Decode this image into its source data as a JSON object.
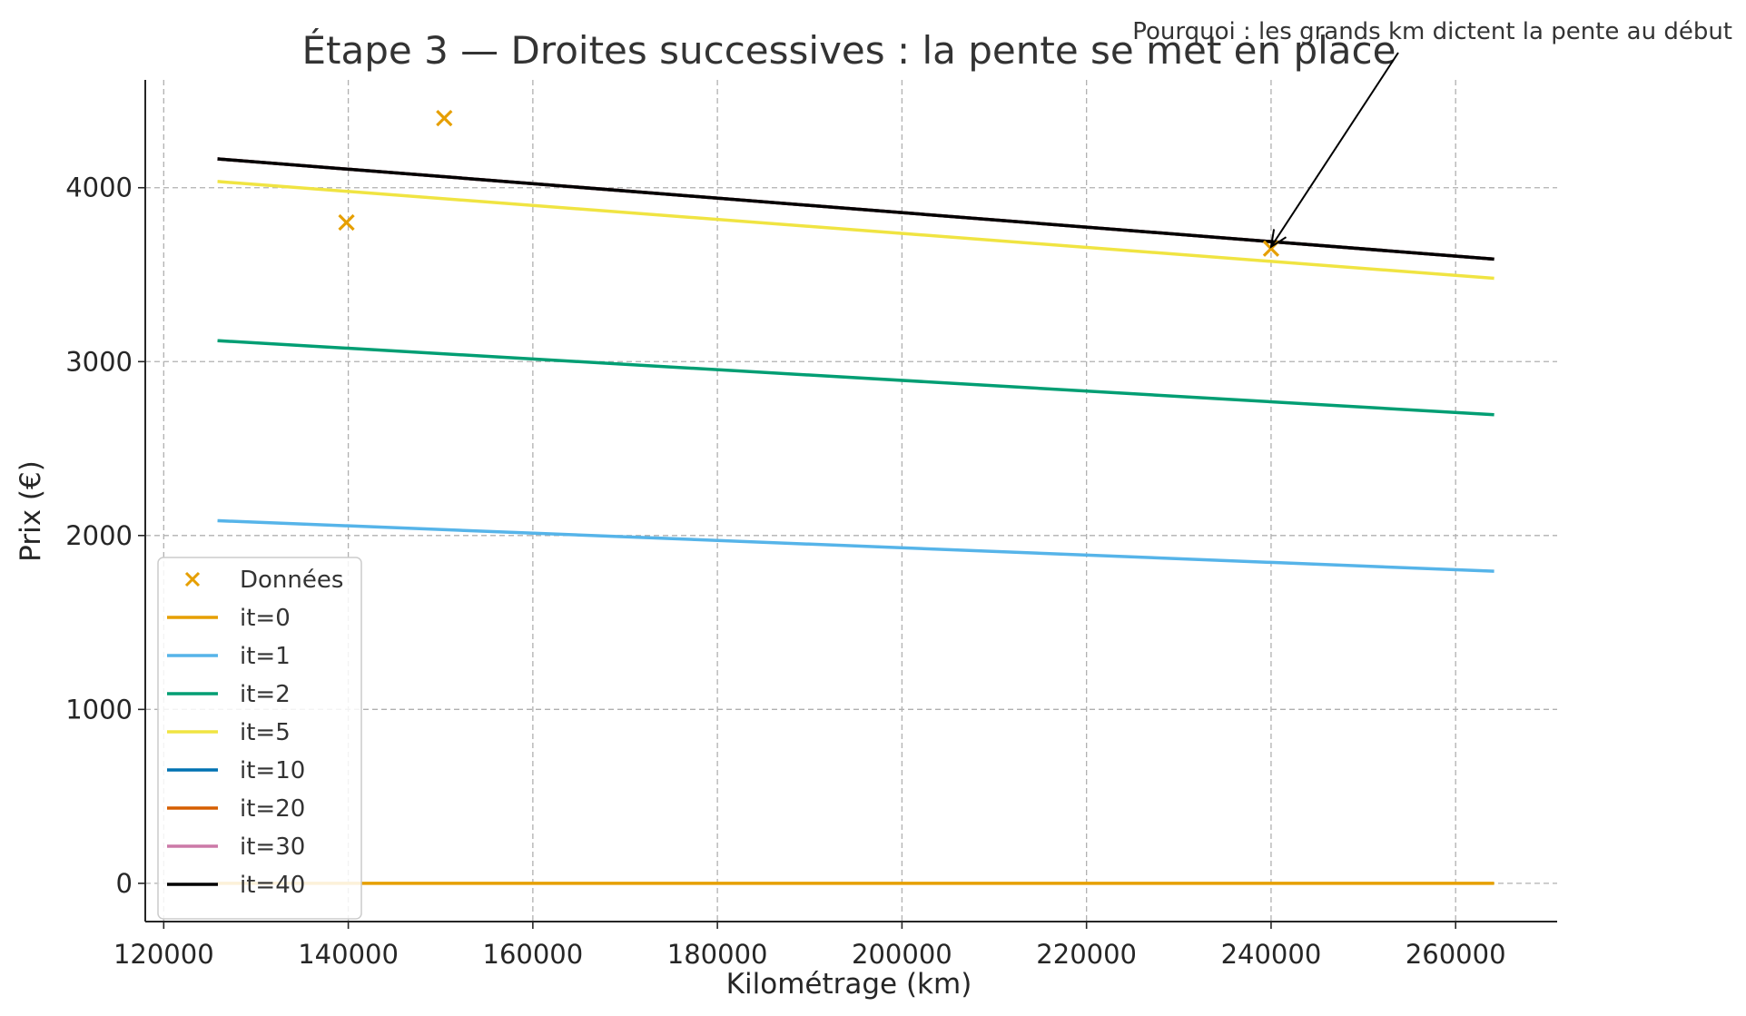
{
  "chart_data": {
    "type": "line",
    "title": "Étape 3 — Droites successives : la pente se met en place",
    "xlabel": "Kilométrage (km)",
    "ylabel": "Prix (€)",
    "xlim": [
      118000,
      271000
    ],
    "ylim": [
      -220,
      4620
    ],
    "x_ticks": [
      120000,
      140000,
      160000,
      180000,
      200000,
      220000,
      240000,
      260000
    ],
    "y_ticks": [
      0,
      1000,
      2000,
      3000,
      4000
    ],
    "grid": true,
    "legend_position": "lower-left",
    "scatter": {
      "name": "Données",
      "color": "#E69F00",
      "points": [
        {
          "x": 139800,
          "y": 3800
        },
        {
          "x": 150400,
          "y": 4400
        },
        {
          "x": 240000,
          "y": 3650
        }
      ]
    },
    "series": [
      {
        "name": "it=0",
        "color": "#E69F00",
        "x": [
          126000,
          264000
        ],
        "y": [
          0,
          0
        ]
      },
      {
        "name": "it=1",
        "color": "#56B4E9",
        "x": [
          126000,
          264000
        ],
        "y": [
          2085,
          1795
        ]
      },
      {
        "name": "it=2",
        "color": "#009E73",
        "x": [
          126000,
          264000
        ],
        "y": [
          3120,
          2695
        ]
      },
      {
        "name": "it=5",
        "color": "#F0E442",
        "x": [
          126000,
          264000
        ],
        "y": [
          4035,
          3480
        ]
      },
      {
        "name": "it=10",
        "color": "#0072B2",
        "x": [
          126000,
          264000
        ],
        "y": [
          4165,
          3590
        ]
      },
      {
        "name": "it=20",
        "color": "#D55E00",
        "x": [
          126000,
          264000
        ],
        "y": [
          4165,
          3590
        ]
      },
      {
        "name": "it=30",
        "color": "#CC79A7",
        "x": [
          126000,
          264000
        ],
        "y": [
          4165,
          3590
        ]
      },
      {
        "name": "it=40",
        "color": "#000000",
        "x": [
          126000,
          264000
        ],
        "y": [
          4165,
          3590
        ]
      }
    ],
    "annotation": {
      "text": "Pourquoi : les grands km dictent la pente au début",
      "target": {
        "x": 240000,
        "y": 3660
      }
    }
  }
}
